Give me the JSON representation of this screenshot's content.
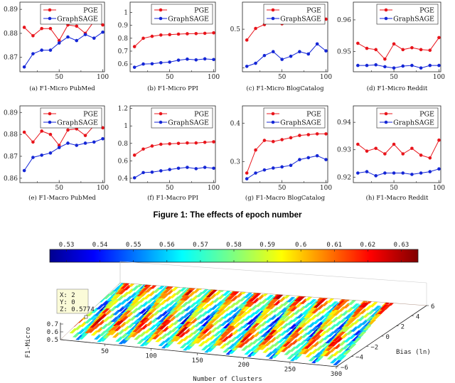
{
  "figure": {
    "caption": "Figure 1: The effects of epoch number",
    "colors": {
      "pge": "#e8141b",
      "graphsage": "#1426d6"
    }
  },
  "chart_data": [
    {
      "type": "line",
      "title": "",
      "subcaption": "(a) F1-Micro PubMed",
      "x": [
        10,
        20,
        30,
        40,
        50,
        60,
        70,
        80,
        90,
        100
      ],
      "series": [
        {
          "name": "PGE",
          "values": [
            0.8825,
            0.879,
            0.882,
            0.882,
            0.877,
            0.8835,
            0.883,
            0.88,
            0.885,
            0.8835
          ]
        },
        {
          "name": "GraphSAGE",
          "values": [
            0.866,
            0.8715,
            0.873,
            0.873,
            0.876,
            0.8785,
            0.877,
            0.8795,
            0.878,
            0.8805
          ]
        }
      ],
      "ylim": [
        0.864,
        0.893
      ],
      "xlim": [
        5,
        102
      ],
      "yticks": [
        0.87,
        0.88,
        0.89
      ],
      "ytick_labels": [
        "0.87",
        "0.88",
        "0.89"
      ],
      "xticks": [
        50,
        100
      ],
      "xtick_labels": [
        "50",
        "100"
      ],
      "xminor": [
        25,
        75
      ],
      "legend": "top-right"
    },
    {
      "type": "line",
      "title": "",
      "subcaption": "(b) F1-Micro PPI",
      "x": [
        10,
        20,
        30,
        40,
        50,
        60,
        70,
        80,
        90,
        100
      ],
      "series": [
        {
          "name": "PGE",
          "values": [
            0.735,
            0.8,
            0.815,
            0.825,
            0.828,
            0.832,
            0.835,
            0.836,
            0.838,
            0.842
          ]
        },
        {
          "name": "GraphSAGE",
          "values": [
            0.575,
            0.6,
            0.602,
            0.61,
            0.615,
            0.63,
            0.638,
            0.632,
            0.64,
            0.635
          ]
        }
      ],
      "ylim": [
        0.54,
        1.08
      ],
      "xlim": [
        5,
        102
      ],
      "yticks": [
        0.6,
        0.7,
        0.8,
        0.9,
        1.0
      ],
      "ytick_labels": [
        "0.6",
        "0.7",
        "0.8",
        "0.9",
        "1"
      ],
      "xticks": [
        50,
        100
      ],
      "xtick_labels": [
        "50",
        "100"
      ],
      "xminor": [
        25,
        75
      ],
      "legend": "top-right"
    },
    {
      "type": "line",
      "title": "",
      "subcaption": "(c) F1-Micro BlogCatalog",
      "x": [
        10,
        20,
        30,
        40,
        50,
        60,
        70,
        80,
        90,
        100
      ],
      "series": [
        {
          "name": "PGE",
          "values": [
            0.486,
            0.501,
            0.506,
            0.511,
            0.507,
            0.512,
            0.516,
            0.511,
            0.512,
            0.513
          ]
        },
        {
          "name": "GraphSAGE",
          "values": [
            0.452,
            0.456,
            0.466,
            0.471,
            0.461,
            0.465,
            0.471,
            0.468,
            0.481,
            0.472
          ]
        }
      ],
      "ylim": [
        0.445,
        0.535
      ],
      "xlim": [
        5,
        102
      ],
      "yticks": [
        0.45,
        0.5
      ],
      "ytick_labels": [
        "",
        "0.5"
      ],
      "xticks": [
        50,
        100
      ],
      "xtick_labels": [
        "50",
        "100"
      ],
      "xminor": [
        25,
        75
      ],
      "legend": "top-right"
    },
    {
      "type": "line",
      "title": "",
      "subcaption": "(d) F1-Micro Reddit",
      "x": [
        10,
        20,
        30,
        40,
        50,
        60,
        70,
        80,
        90,
        100
      ],
      "series": [
        {
          "name": "PGE",
          "values": [
            0.9513,
            0.9505,
            0.9503,
            0.9488,
            0.9512,
            0.9503,
            0.9506,
            0.9503,
            0.9502,
            0.9522
          ]
        },
        {
          "name": "GraphSAGE",
          "values": [
            0.9478,
            0.9478,
            0.9479,
            0.9476,
            0.9474,
            0.9477,
            0.9478,
            0.9474,
            0.9478,
            0.9478
          ]
        }
      ],
      "ylim": [
        0.9468,
        0.9578
      ],
      "xlim": [
        5,
        102
      ],
      "yticks": [
        0.95,
        0.955
      ],
      "ytick_labels": [
        "0.95",
        "0.96"
      ],
      "xticks": [
        50,
        100
      ],
      "xtick_labels": [
        "50",
        "100"
      ],
      "xminor": [
        25,
        75
      ],
      "legend": "top-right"
    },
    {
      "type": "line",
      "title": "",
      "subcaption": "(e) F1-Macro PubMed",
      "x": [
        10,
        20,
        30,
        40,
        50,
        60,
        70,
        80,
        90,
        100
      ],
      "series": [
        {
          "name": "PGE",
          "values": [
            0.881,
            0.8765,
            0.8815,
            0.88,
            0.875,
            0.882,
            0.8825,
            0.8795,
            0.884,
            0.883
          ]
        },
        {
          "name": "GraphSAGE",
          "values": [
            0.8635,
            0.8695,
            0.8705,
            0.8715,
            0.874,
            0.876,
            0.875,
            0.876,
            0.8765,
            0.878
          ]
        }
      ],
      "ylim": [
        0.858,
        0.893
      ],
      "xlim": [
        5,
        102
      ],
      "yticks": [
        0.86,
        0.87,
        0.88,
        0.89
      ],
      "ytick_labels": [
        "0.86",
        "0.87",
        "0.88",
        "0.89"
      ],
      "xticks": [
        50,
        100
      ],
      "xtick_labels": [
        "50",
        "100"
      ],
      "xminor": [
        25,
        75
      ],
      "legend": "top-right"
    },
    {
      "type": "line",
      "title": "",
      "subcaption": "(f) F1-Macro PPI",
      "x": [
        10,
        20,
        30,
        40,
        50,
        60,
        70,
        80,
        90,
        100
      ],
      "series": [
        {
          "name": "PGE",
          "values": [
            0.665,
            0.735,
            0.77,
            0.79,
            0.795,
            0.8,
            0.805,
            0.805,
            0.812,
            0.818
          ]
        },
        {
          "name": "GraphSAGE",
          "values": [
            0.405,
            0.465,
            0.47,
            0.485,
            0.5,
            0.515,
            0.525,
            0.51,
            0.525,
            0.515
          ]
        }
      ],
      "ylim": [
        0.35,
        1.23
      ],
      "xlim": [
        5,
        102
      ],
      "yticks": [
        0.4,
        0.6,
        0.8,
        1.0,
        1.2
      ],
      "ytick_labels": [
        "0.4",
        "0.6",
        "0.8",
        "1",
        "1.2"
      ],
      "xticks": [
        50,
        100
      ],
      "xtick_labels": [
        "50",
        "100"
      ],
      "xminor": [
        25,
        75
      ],
      "legend": "top-right"
    },
    {
      "type": "line",
      "title": "",
      "subcaption": "(g) F1-Macro BlogCatalog",
      "x": [
        10,
        20,
        30,
        40,
        50,
        60,
        70,
        80,
        90,
        100
      ],
      "series": [
        {
          "name": "PGE",
          "values": [
            0.27,
            0.33,
            0.355,
            0.352,
            0.357,
            0.362,
            0.368,
            0.37,
            0.372,
            0.372
          ]
        },
        {
          "name": "GraphSAGE",
          "values": [
            0.255,
            0.27,
            0.278,
            0.283,
            0.286,
            0.29,
            0.305,
            0.31,
            0.315,
            0.305
          ]
        }
      ],
      "ylim": [
        0.245,
        0.445
      ],
      "xlim": [
        5,
        102
      ],
      "yticks": [
        0.3,
        0.4
      ],
      "ytick_labels": [
        "0.3",
        "0.4"
      ],
      "xticks": [
        50,
        100
      ],
      "xtick_labels": [
        "50",
        "100"
      ],
      "xminor": [
        25,
        75
      ],
      "legend": "top-right"
    },
    {
      "type": "line",
      "title": "",
      "subcaption": "(h) F1-Macro Reddit",
      "x": [
        10,
        20,
        30,
        40,
        50,
        60,
        70,
        80,
        90,
        100
      ],
      "series": [
        {
          "name": "PGE",
          "values": [
            0.932,
            0.9295,
            0.9305,
            0.9285,
            0.932,
            0.9285,
            0.9305,
            0.928,
            0.927,
            0.9335
          ]
        },
        {
          "name": "GraphSAGE",
          "values": [
            0.9215,
            0.922,
            0.9205,
            0.9215,
            0.9215,
            0.9215,
            0.921,
            0.9215,
            0.922,
            0.923
          ]
        }
      ],
      "ylim": [
        0.918,
        0.946
      ],
      "xlim": [
        5,
        102
      ],
      "yticks": [
        0.92,
        0.93,
        0.94
      ],
      "ytick_labels": [
        "0.92",
        "0.93",
        "0.94"
      ],
      "xticks": [
        50,
        100
      ],
      "xtick_labels": [
        "50",
        "100"
      ],
      "xminor": [
        25,
        75
      ],
      "legend": "top-right"
    },
    {
      "type": "surface3d",
      "title": "",
      "xlabel": "Number of Clusters",
      "ylabel": "Bias (ln)",
      "zlabel": "F1-Micro",
      "x_range": [
        2,
        300
      ],
      "y_range": [
        -6,
        6
      ],
      "z_range": [
        0.5,
        0.7
      ],
      "xtick_labels": [
        "50",
        "100",
        "150",
        "200",
        "250",
        "300"
      ],
      "ytick_labels": [
        "6",
        "4",
        "2",
        "0",
        "−2",
        "−4",
        "−6"
      ],
      "ztick_labels": [
        "0.5",
        "0.6",
        "0.7"
      ],
      "colorbar": {
        "min": 0.525,
        "max": 0.635,
        "tick_labels": [
          "0.53",
          "0.54",
          "0.55",
          "0.56",
          "0.57",
          "0.58",
          "0.59",
          "0.6",
          "0.61",
          "0.62",
          "0.63"
        ]
      },
      "datatip": {
        "x_label": "X: 2",
        "y_label": "Y: 0",
        "z_label": "Z: 0.5774",
        "z": 0.5774
      }
    }
  ]
}
